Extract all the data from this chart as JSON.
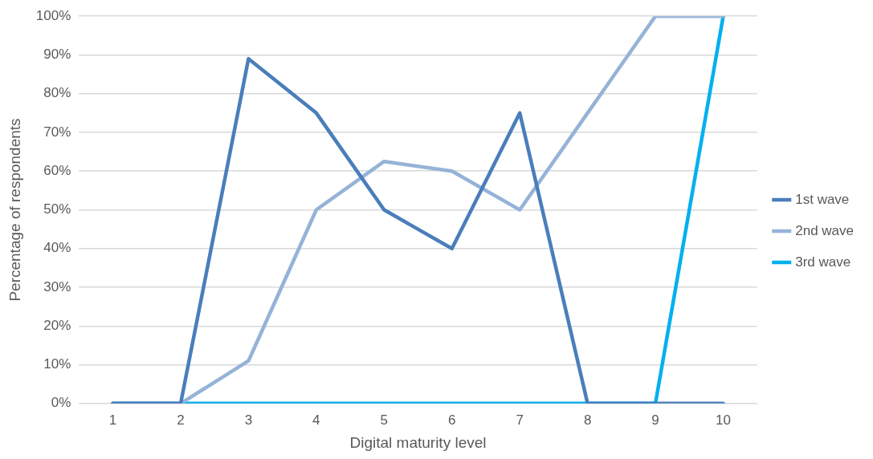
{
  "chart_data": {
    "type": "line",
    "xlabel": "Digital maturity level",
    "ylabel": "Percentage of respondents",
    "categories": [
      "1",
      "2",
      "3",
      "4",
      "5",
      "6",
      "7",
      "8",
      "9",
      "10"
    ],
    "series": [
      {
        "name": "1st wave",
        "color": "#4a7ebb",
        "values": [
          0,
          0,
          89,
          75,
          50,
          40,
          75,
          0,
          0,
          0
        ]
      },
      {
        "name": "2nd wave",
        "color": "#95b3d7",
        "values": [
          0,
          0,
          11,
          50,
          62.5,
          60,
          50,
          75,
          100,
          100
        ]
      },
      {
        "name": "3rd wave",
        "color": "#00b0f0",
        "values": [
          0,
          0,
          0,
          0,
          0,
          0,
          0,
          0,
          0,
          100
        ]
      }
    ],
    "ylim": [
      0,
      100
    ],
    "yticks": [
      {
        "value": 0,
        "label": "0%"
      },
      {
        "value": 10,
        "label": "10%"
      },
      {
        "value": 20,
        "label": "20%"
      },
      {
        "value": 30,
        "label": "30%"
      },
      {
        "value": 40,
        "label": "40%"
      },
      {
        "value": 50,
        "label": "50%"
      },
      {
        "value": 60,
        "label": "60%"
      },
      {
        "value": 70,
        "label": "70%"
      },
      {
        "value": 80,
        "label": "80%"
      },
      {
        "value": 90,
        "label": "90%"
      },
      {
        "value": 100,
        "label": "100%"
      }
    ],
    "grid": "y",
    "legend": "right",
    "marker": "none",
    "line_style": "solid"
  }
}
